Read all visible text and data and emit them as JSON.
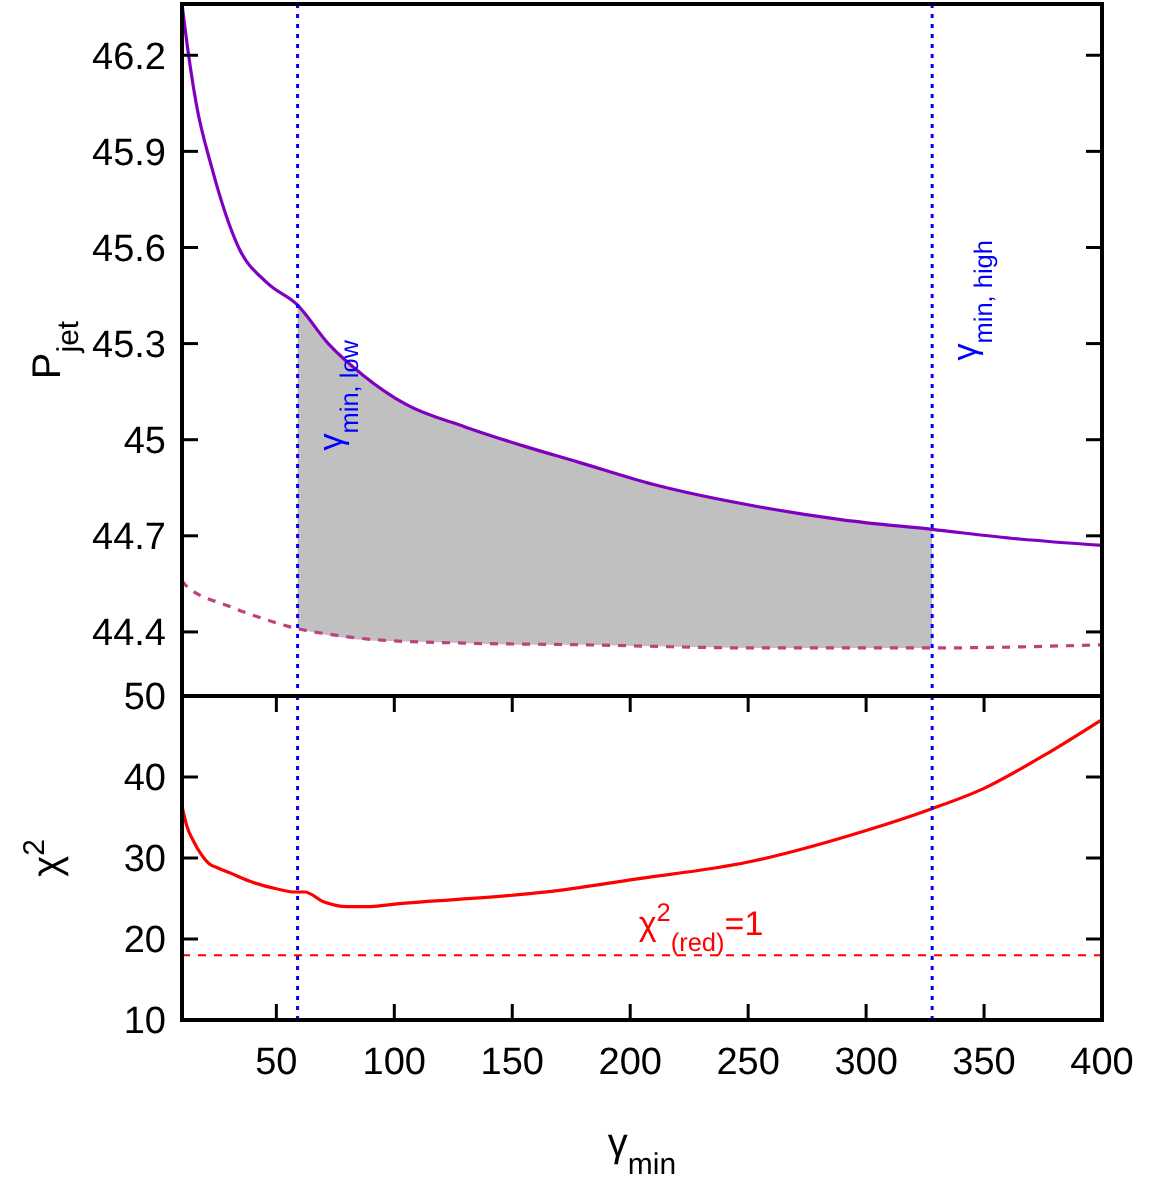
{
  "chart_data": [
    {
      "type": "line",
      "ylabel": "P$_{jet}$",
      "xlim": [
        10,
        400
      ],
      "ylim": [
        44.2,
        46.36
      ],
      "yticks": [
        44.4,
        44.7,
        45,
        45.3,
        45.6,
        45.9,
        46.2
      ],
      "tick_labels": "y",
      "series": [
        {
          "color": "#8000c0",
          "line_style": "solid",
          "x": [
            10,
            11,
            16,
            22.6,
            34,
            46,
            59,
            72,
            87,
            105,
            130,
            155,
            178,
            210,
            255,
            290,
            328,
            365,
            400
          ],
          "values": [
            46.36,
            46.3,
            46.05,
            45.85,
            45.6,
            45.49,
            45.42,
            45.3,
            45.2,
            45.11,
            45.04,
            44.98,
            44.93,
            44.86,
            44.79,
            44.75,
            44.72,
            44.69,
            44.67
          ],
          "lower": [
            null,
            null,
            null,
            null,
            null,
            null,
            44.41,
            44.39,
            44.375,
            44.37,
            44.365,
            44.36,
            44.36,
            44.355,
            44.35,
            44.35,
            44.35,
            null,
            null
          ],
          "upper": [
            null,
            null,
            null,
            null,
            null,
            null,
            45.42,
            45.3,
            45.2,
            45.11,
            45.04,
            44.98,
            44.93,
            44.86,
            44.79,
            44.75,
            44.72,
            null,
            null
          ]
        },
        {
          "color": "#c04080",
          "line_style": "dashed",
          "x": [
            10,
            11,
            30,
            45,
            59,
            75,
            93,
            130,
            178,
            255,
            328,
            400
          ],
          "values": [
            44.56,
            44.55,
            44.48,
            44.44,
            44.41,
            44.39,
            44.375,
            44.365,
            44.36,
            44.35,
            44.35,
            44.36
          ]
        }
      ],
      "ref_lines": [
        {
          "axis": "x",
          "value": 59,
          "label": "γ$_{min, low}$",
          "color": "#0000ff",
          "line_style": "dotted"
        },
        {
          "axis": "x",
          "value": 328,
          "label": "γ$_{min, high}$",
          "color": "#0000ff",
          "line_style": "dotted"
        }
      ]
    },
    {
      "type": "line",
      "ylabel": "χ$^{2}$",
      "xlabel": "γ$_{min}$",
      "xlim": [
        10,
        400
      ],
      "xticks": [
        50,
        100,
        150,
        200,
        250,
        300,
        350,
        400
      ],
      "ylim": [
        10,
        50
      ],
      "yticks": [
        10,
        20,
        30,
        40,
        50
      ],
      "series": [
        {
          "color": "#ff0000",
          "line_style": "solid",
          "x": [
            10,
            12,
            15,
            18,
            21.5,
            25,
            30,
            40,
            50,
            58,
            62,
            70,
            80,
            90,
            100,
            150,
            170,
            200,
            250,
            300,
            327,
            350,
            375,
            400
          ],
          "values": [
            36.4,
            34,
            32,
            30.5,
            29.3,
            28.8,
            28.2,
            27,
            26.2,
            25.8,
            25.8,
            24.6,
            24,
            24,
            24.3,
            25.4,
            26,
            27.3,
            29.5,
            33.4,
            36,
            38.6,
            42.6,
            47.1
          ]
        }
      ],
      "ref_lines": [
        {
          "axis": "x",
          "value": 59,
          "color": "#0000ff",
          "line_style": "dotted"
        },
        {
          "axis": "x",
          "value": 328,
          "color": "#0000ff",
          "line_style": "dotted"
        },
        {
          "axis": "y",
          "value": 18,
          "color": "#ff0000",
          "line_style": "dashed"
        }
      ],
      "annotations": [
        {
          "text": "χ$^{2}$$_{(red)}$=1",
          "x": 230,
          "y": 18
        }
      ]
    }
  ]
}
